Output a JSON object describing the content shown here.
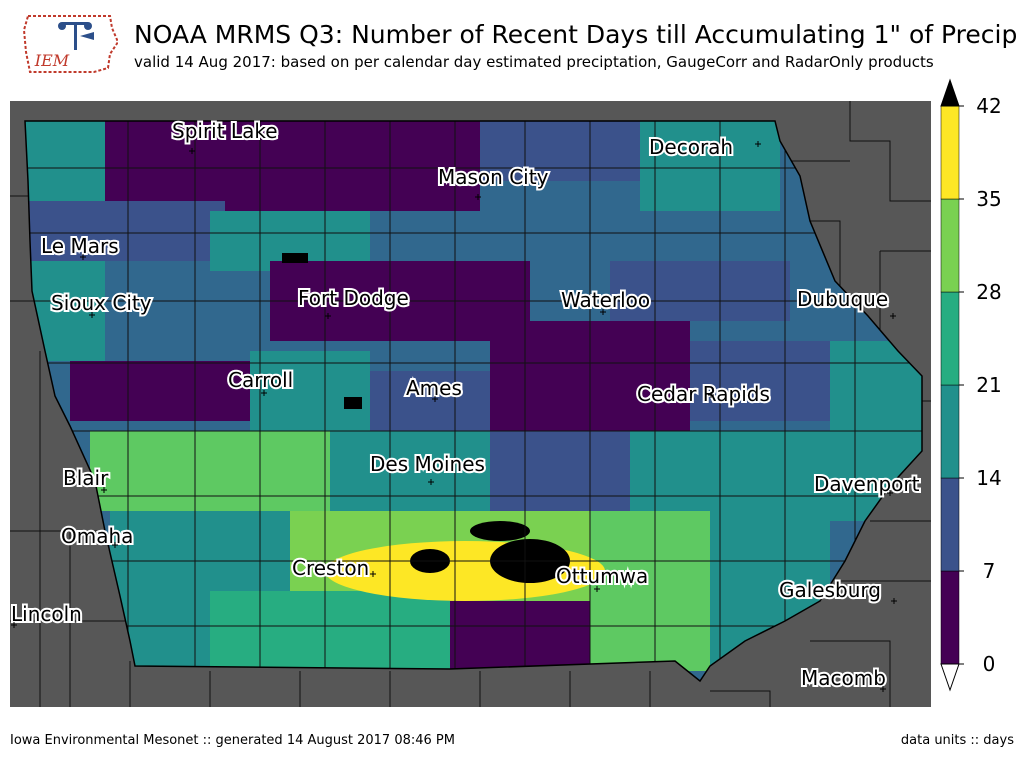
{
  "header": {
    "title": "NOAA MRMS Q3: Number of Recent Days till Accumulating 1\" of Precip",
    "subtitle": "valid 14 Aug 2017: based on per calendar day estimated preciptation, GaugeCorr and RadarOnly products",
    "logo_text": "IEM"
  },
  "map": {
    "background": "#575757",
    "cities": [
      {
        "name": "Spirit Lake"
      },
      {
        "name": "Decorah"
      },
      {
        "name": "Mason City"
      },
      {
        "name": "Le Mars"
      },
      {
        "name": "Sioux City"
      },
      {
        "name": "Fort Dodge"
      },
      {
        "name": "Waterloo"
      },
      {
        "name": "Dubuque"
      },
      {
        "name": "Carroll"
      },
      {
        "name": "Ames"
      },
      {
        "name": "Cedar Rapids"
      },
      {
        "name": "Blair"
      },
      {
        "name": "Des Moines"
      },
      {
        "name": "Davenport"
      },
      {
        "name": "Omaha"
      },
      {
        "name": "Creston"
      },
      {
        "name": "Ottumwa"
      },
      {
        "name": "Galesburg"
      },
      {
        "name": "Lincoln"
      },
      {
        "name": "Macomb"
      }
    ]
  },
  "colorbar": {
    "ticks": [
      "0",
      "7",
      "14",
      "21",
      "28",
      "35",
      "42"
    ],
    "colors": [
      "#440154",
      "#3b528b",
      "#21908c",
      "#27ad81",
      "#7ad151",
      "#fde725"
    ],
    "over_color": "#000000",
    "under_color": "#ffffff"
  },
  "footer": {
    "left": "Iowa Environmental Mesonet :: generated 14 August 2017 08:46 PM",
    "right": "data units :: days"
  }
}
